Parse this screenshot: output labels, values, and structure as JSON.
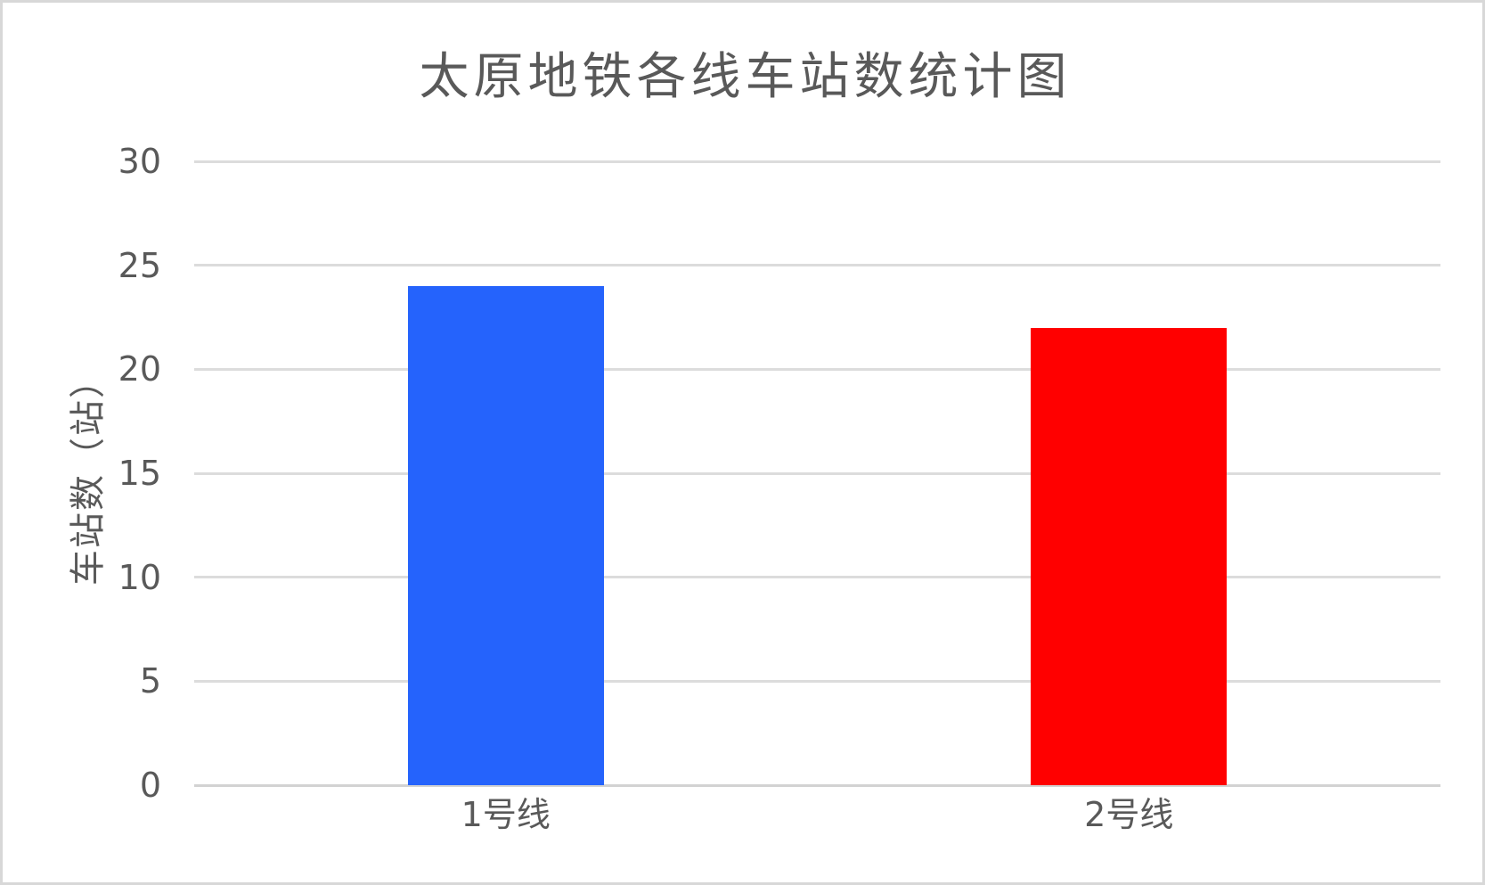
{
  "chart_data": {
    "type": "bar",
    "title": "太原地铁各线车站数统计图",
    "ylabel": "车站数（站）",
    "xlabel": "",
    "categories": [
      "1号线",
      "2号线"
    ],
    "values": [
      24,
      22
    ],
    "bar_colors": [
      "#2563fc",
      "#ff0000"
    ],
    "ylim": [
      0,
      30
    ],
    "yticks": [
      0,
      5,
      10,
      15,
      20,
      25,
      30
    ],
    "grid": "horizontal",
    "legend_position": "none"
  },
  "colors": {
    "text": "#595959",
    "gridline": "#dcdcdc",
    "axis_line": "#d2d2d2",
    "page_border": "#d8d8d8",
    "background": "#ffffff"
  }
}
